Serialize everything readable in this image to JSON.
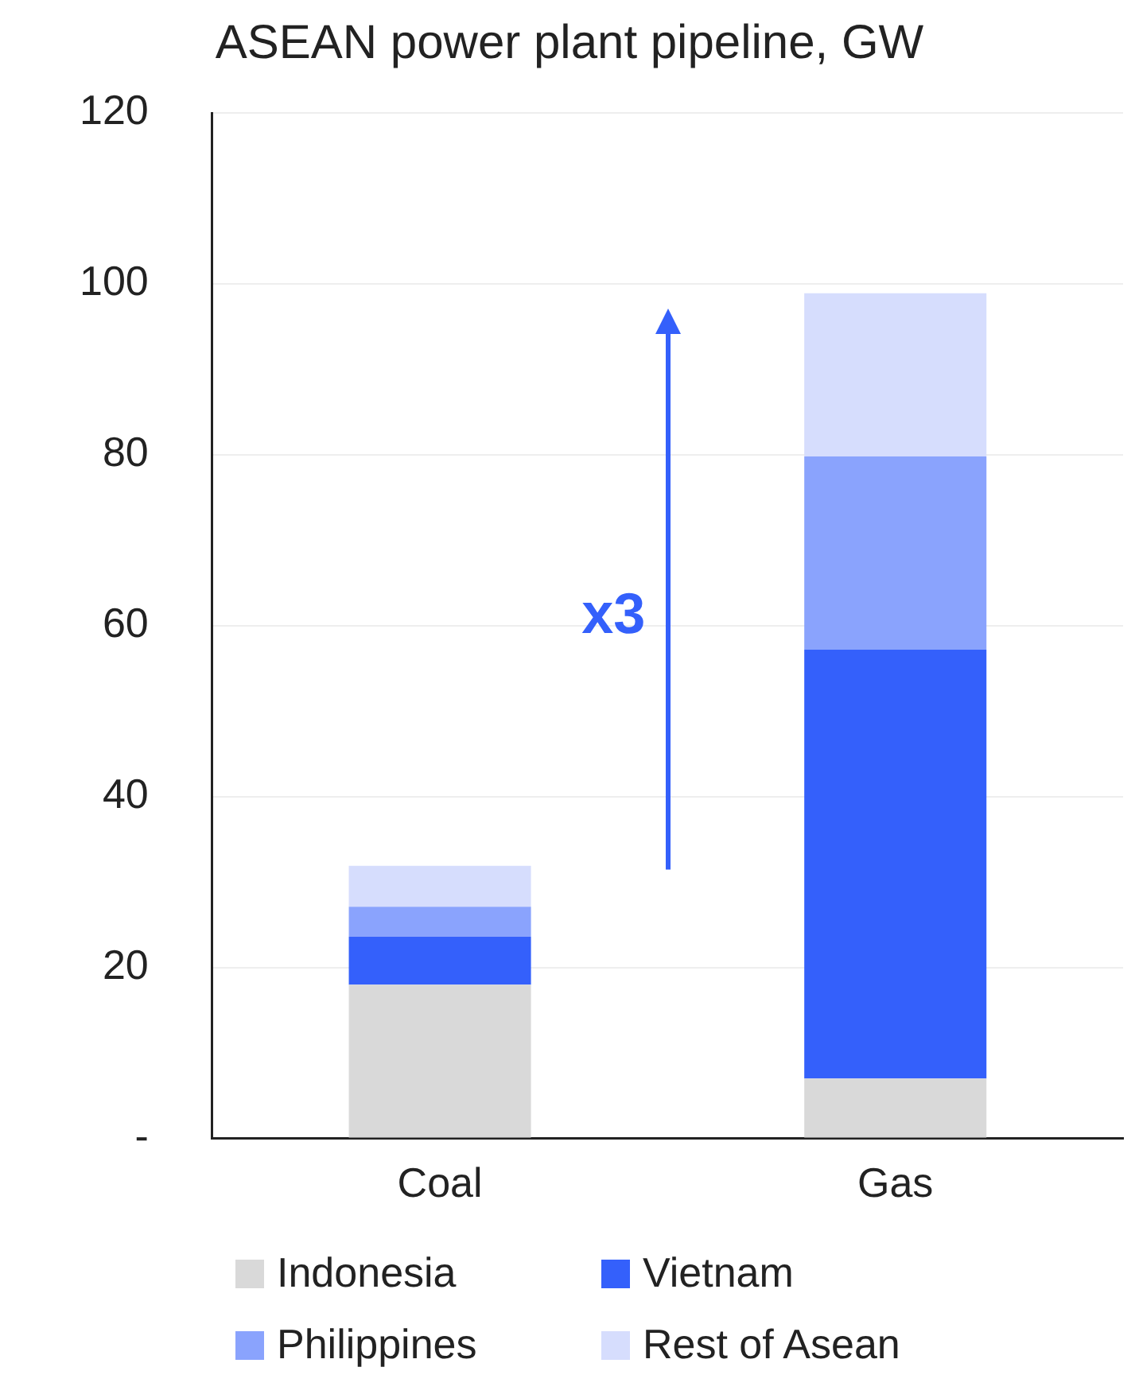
{
  "chart_data": {
    "type": "bar",
    "title": "ASEAN power plant pipeline, GW",
    "categories": [
      "Coal",
      "Gas"
    ],
    "stacked": true,
    "series": [
      {
        "name": "Indonesia",
        "color": "#d9d9d9",
        "values": [
          18,
          7
        ]
      },
      {
        "name": "Vietnam",
        "color": "#3460fb",
        "values": [
          5.6,
          50.2
        ]
      },
      {
        "name": "Philippines",
        "color": "#8aa3fd",
        "values": [
          3.5,
          22.6
        ]
      },
      {
        "name": "Rest of Asean",
        "color": "#d6ddfd",
        "values": [
          4.8,
          19.1
        ]
      }
    ],
    "ylim": [
      0,
      120
    ],
    "yticks": [
      {
        "value": 0,
        "label": "-"
      },
      20,
      40,
      60,
      80,
      100,
      120
    ],
    "grid": "y",
    "legend": "bottom",
    "annotations": [
      "x3"
    ]
  }
}
